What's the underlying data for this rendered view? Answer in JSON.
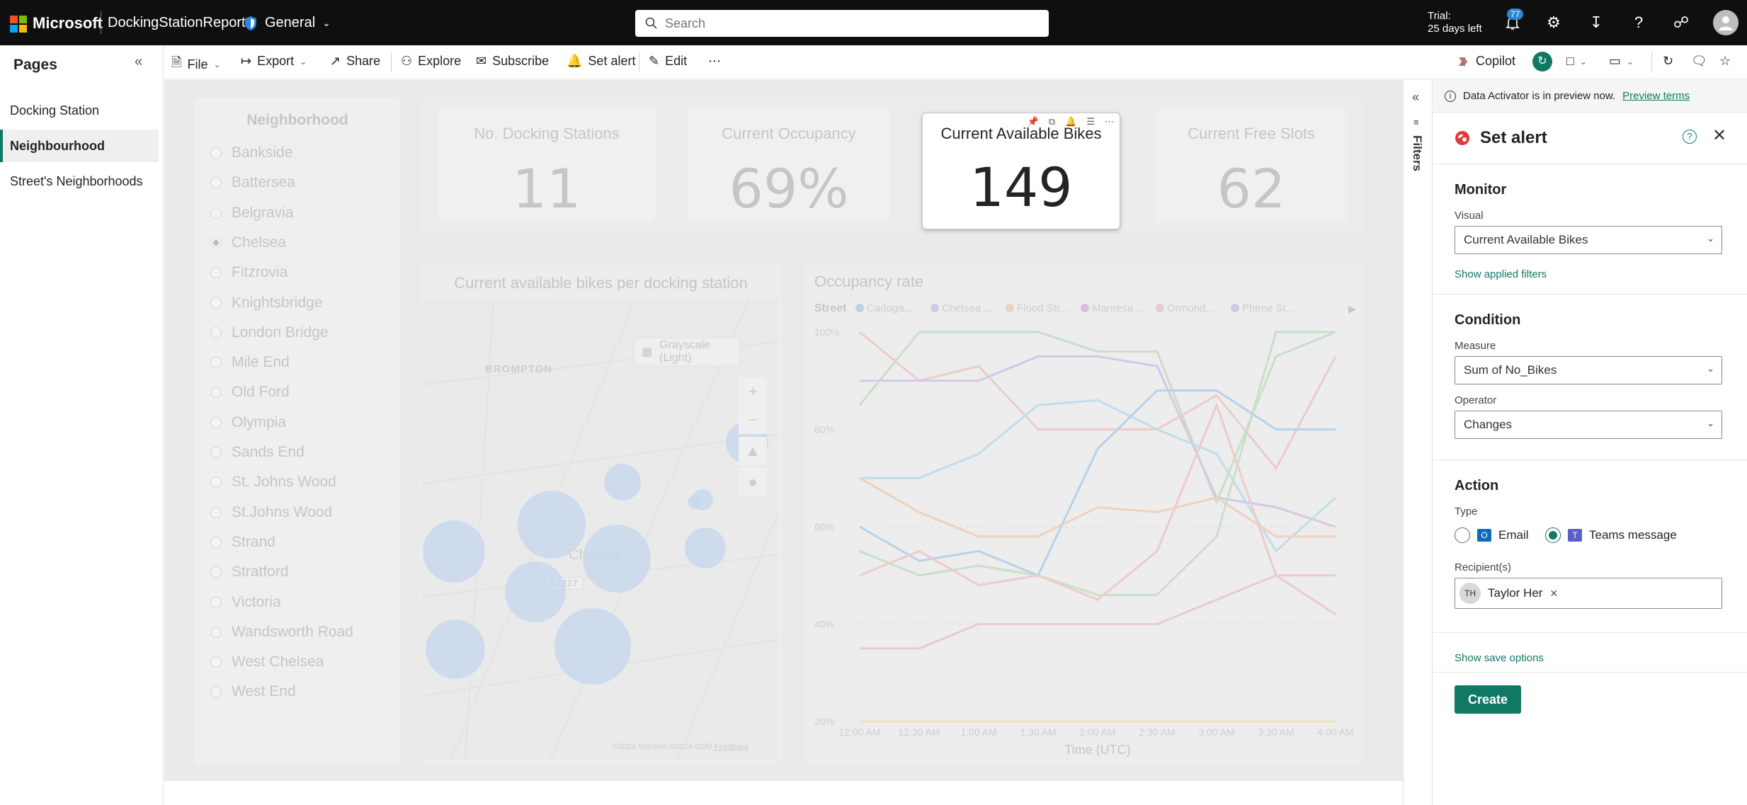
{
  "topbar": {
    "brand": "Microsoft",
    "report_name": "DockingStationReport",
    "workspace": "General",
    "search_placeholder": "Search",
    "trial_line1": "Trial:",
    "trial_line2": "25 days left",
    "notification_count": "77"
  },
  "pages": {
    "title": "Pages",
    "items": [
      {
        "label": "Docking Station",
        "active": false
      },
      {
        "label": "Neighbourhood",
        "active": true
      },
      {
        "label": "Street's Neighborhoods",
        "active": false
      }
    ]
  },
  "ribbon": {
    "file": "File",
    "export": "Export",
    "share": "Share",
    "explore": "Explore",
    "subscribe": "Subscribe",
    "set_alert": "Set alert",
    "edit": "Edit",
    "copilot": "Copilot"
  },
  "slicer": {
    "title": "Neighborhood",
    "selected": "Chelsea",
    "options": [
      "Bankside",
      "Battersea",
      "Belgravia",
      "Chelsea",
      "Fitzrovia",
      "Knightsbridge",
      "London Bridge",
      "Mile End",
      "Old Ford",
      "Olympia",
      "Sands End",
      "St. Johns Wood",
      "St.Johns Wood",
      "Strand",
      "Stratford",
      "Victoria",
      "Wandsworth Road",
      "West Chelsea",
      "West End"
    ]
  },
  "kpis": [
    {
      "label": "No. Docking Stations",
      "value": "11"
    },
    {
      "label": "Current Occupancy",
      "value": "69%"
    },
    {
      "label": "Current Available Bikes",
      "value": "149"
    },
    {
      "label": "Current Free Slots",
      "value": "62"
    }
  ],
  "map": {
    "title": "Current available bikes per docking station",
    "style_button": "Grayscale (Light)",
    "area_label_1": "BROMPTON",
    "area_label_2": "Chelsea",
    "road_label": "A3217",
    "footer_copyright": "©2024 TomTom ©2024 OSM",
    "footer_link": "Feedback"
  },
  "chart_data": {
    "type": "line",
    "title": "Occupancy rate",
    "legend_title": "Street",
    "legend": [
      "Cadoga...",
      "Chelsea ...",
      "Flood Str...",
      "Manresa ...",
      "Ormond...",
      "Phene St..."
    ],
    "xlabel": "Time (UTC)",
    "x": [
      "12:00 AM",
      "12:30 AM",
      "1:00 AM",
      "1:30 AM",
      "2:00 AM",
      "2:30 AM",
      "3:00 AM",
      "3:30 AM",
      "4:00 AM"
    ],
    "yticks": [
      "100%",
      "80%",
      "60%",
      "40%",
      "20%"
    ],
    "ylim": [
      20,
      100
    ],
    "series": [
      {
        "color": "#f2a6a6",
        "values": [
          100,
          90,
          93,
          80,
          80,
          80,
          87,
          72,
          95
        ]
      },
      {
        "color": "#9fd39f",
        "values": [
          85,
          100,
          100,
          100,
          96,
          96,
          65,
          95,
          100
        ]
      },
      {
        "color": "#b9a2dc",
        "values": [
          90,
          90,
          90,
          95,
          95,
          93,
          66,
          64,
          60
        ]
      },
      {
        "color": "#8fd0ea",
        "values": [
          70,
          70,
          75,
          85,
          86,
          80,
          75,
          55,
          66
        ]
      },
      {
        "color": "#f4b58a",
        "values": [
          70,
          63,
          58,
          58,
          64,
          63,
          66,
          58,
          58
        ]
      },
      {
        "color": "#9fd39f",
        "values": [
          55,
          50,
          52,
          50,
          46,
          46,
          58,
          100,
          100
        ]
      },
      {
        "color": "#7ab7e8",
        "values": [
          60,
          53,
          55,
          50,
          76,
          88,
          88,
          80,
          80
        ]
      },
      {
        "color": "#e9a2c8",
        "values": [
          35,
          35,
          40,
          40,
          40,
          40,
          45,
          50,
          42
        ]
      },
      {
        "color": "#f2a6a6",
        "values": [
          50,
          55,
          48,
          50,
          45,
          55,
          85,
          50,
          50
        ]
      },
      {
        "color": "#f0d98a",
        "values": [
          20,
          20,
          20,
          20,
          20,
          20,
          20,
          20,
          20
        ]
      }
    ]
  },
  "filters": {
    "label": "Filters"
  },
  "alert": {
    "preview_text": "Data Activator is in preview now.",
    "preview_link": "Preview terms",
    "title": "Set alert",
    "monitor_title": "Monitor",
    "visual_label": "Visual",
    "visual_value": "Current Available Bikes",
    "show_filters": "Show applied filters",
    "condition_title": "Condition",
    "measure_label": "Measure",
    "measure_value": "Sum of No_Bikes",
    "operator_label": "Operator",
    "operator_value": "Changes",
    "action_title": "Action",
    "type_label": "Type",
    "type_email": "Email",
    "type_teams": "Teams message",
    "selected_type": "Teams message",
    "recipients_label": "Recipient(s)",
    "recipient_initials": "TH",
    "recipient_name": "Taylor Her",
    "save_options": "Show save options",
    "create_label": "Create"
  },
  "colors": {
    "accent": "#117865",
    "topbar_bg": "#0f0f0f"
  }
}
